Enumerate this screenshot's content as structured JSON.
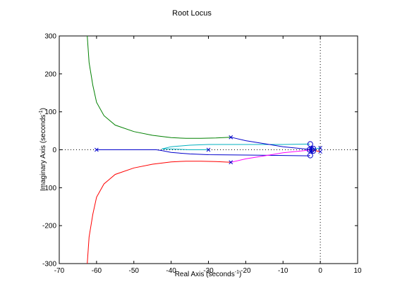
{
  "chart_data": {
    "type": "line",
    "title": "Root Locus",
    "xlabel": "Real Axis (seconds",
    "xlabel_sup": "-1",
    "xlabel_suffix": ")",
    "ylabel": "Imaginary Axis (seconds",
    "ylabel_sup": "-1",
    "ylabel_suffix": ")",
    "xlim": [
      -70,
      10
    ],
    "ylim": [
      -300,
      300
    ],
    "xticks": [
      -70,
      -60,
      -50,
      -40,
      -30,
      -20,
      -10,
      0,
      10
    ],
    "yticks": [
      -300,
      -200,
      -100,
      0,
      100,
      200,
      300
    ],
    "grid": false,
    "reference_lines": {
      "real_axis_dotted": true,
      "imag_axis_dotted": true
    },
    "series": [
      {
        "color": "#008000",
        "points": [
          [
            -24,
            33
          ],
          [
            -28,
            31
          ],
          [
            -32,
            30
          ],
          [
            -36,
            30
          ],
          [
            -40,
            32
          ],
          [
            -45,
            38
          ],
          [
            -50,
            48
          ],
          [
            -55,
            65
          ],
          [
            -58,
            90
          ],
          [
            -60,
            125
          ],
          [
            -61,
            170
          ],
          [
            -62,
            230
          ],
          [
            -62.5,
            300
          ]
        ]
      },
      {
        "color": "#ff0000",
        "points": [
          [
            -24,
            -33
          ],
          [
            -28,
            -31
          ],
          [
            -32,
            -30
          ],
          [
            -36,
            -30
          ],
          [
            -40,
            -32
          ],
          [
            -45,
            -38
          ],
          [
            -50,
            -48
          ],
          [
            -55,
            -65
          ],
          [
            -58,
            -90
          ],
          [
            -60,
            -125
          ],
          [
            -61,
            -170
          ],
          [
            -62,
            -230
          ],
          [
            -62.5,
            -300
          ]
        ]
      },
      {
        "color": "#0000cc",
        "points": [
          [
            -60,
            0
          ],
          [
            -50,
            0
          ],
          [
            -44,
            0
          ],
          [
            -42.5,
            -2
          ],
          [
            -40,
            -7
          ],
          [
            -35,
            -11
          ],
          [
            -30,
            -13
          ],
          [
            -20,
            -14
          ],
          [
            -10,
            -15
          ],
          [
            -3,
            -16
          ],
          [
            -2.8,
            -14
          ]
        ]
      },
      {
        "color": "#00b0c0",
        "points": [
          [
            -30,
            0
          ],
          [
            -35,
            0
          ],
          [
            -40,
            2
          ],
          [
            -42.5,
            2
          ],
          [
            -40,
            8
          ],
          [
            -35,
            12
          ],
          [
            -30,
            14
          ],
          [
            -20,
            14
          ],
          [
            -10,
            14
          ],
          [
            -3,
            15
          ],
          [
            -2.8,
            14
          ]
        ]
      },
      {
        "color": "#0000cc",
        "points": [
          [
            -24,
            33
          ],
          [
            -20,
            24
          ],
          [
            -15,
            16
          ],
          [
            -10,
            8
          ],
          [
            -5,
            3
          ],
          [
            -3,
            1
          ]
        ]
      },
      {
        "color": "#ff00ff",
        "points": [
          [
            -24,
            -33
          ],
          [
            -20,
            -24
          ],
          [
            -15,
            -16
          ],
          [
            -10,
            -8
          ],
          [
            -5,
            -3
          ],
          [
            -3,
            -1
          ]
        ]
      },
      {
        "color": "#00b0c0",
        "points": [
          [
            0,
            5
          ],
          [
            -1,
            3
          ],
          [
            -2,
            1
          ]
        ]
      },
      {
        "color": "#ff0000",
        "points": [
          [
            0,
            -5
          ],
          [
            -1,
            -3
          ],
          [
            -2,
            -1
          ]
        ]
      }
    ],
    "poles": [
      [
        -60,
        0
      ],
      [
        -30,
        0
      ],
      [
        -24,
        33
      ],
      [
        -24,
        -33
      ],
      [
        0,
        5
      ],
      [
        0,
        -5
      ],
      [
        -2.5,
        3
      ],
      [
        -2.5,
        -3
      ]
    ],
    "zeros": [
      [
        -2.7,
        15
      ],
      [
        -2.7,
        -15
      ],
      [
        -2.9,
        0
      ],
      [
        -2.3,
        0
      ],
      [
        -1.9,
        3
      ],
      [
        -1.9,
        -3
      ]
    ],
    "marker_color": "#0000cc"
  }
}
